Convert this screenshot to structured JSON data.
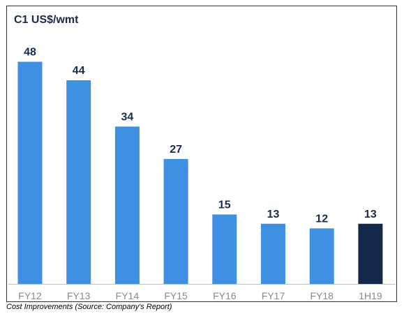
{
  "chart_data": {
    "type": "bar",
    "ylabel": "C1 US$/wmt",
    "categories": [
      "FY12",
      "FY13",
      "FY14",
      "FY15",
      "FY16",
      "FY17",
      "FY18",
      "1H19"
    ],
    "values": [
      48,
      44,
      34,
      27,
      15,
      13,
      12,
      13
    ],
    "ylim": [
      0,
      52
    ],
    "grid": false,
    "colors": {
      "bar": "#3f8fe3",
      "highlight_bar": "#14284b",
      "value_label": "#1a2a4a",
      "tick_label": "#8a8a8a"
    },
    "highlight_index": 7
  },
  "caption": "Cost Improvements (Source: Company's Report)"
}
